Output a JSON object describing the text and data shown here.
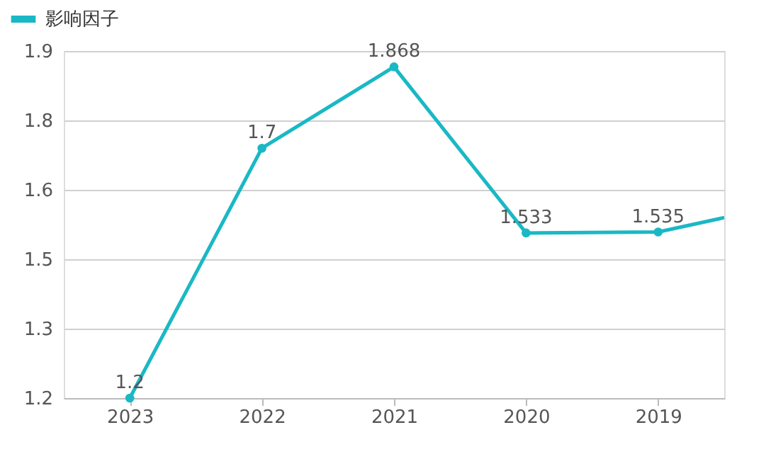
{
  "chart_data": {
    "type": "line",
    "x": [
      2023,
      2022,
      2021,
      2020,
      2019,
      2018.5
    ],
    "series": [
      {
        "name": "影响因子",
        "color": "#1ab8c4",
        "values": [
          1.2,
          1.704,
          1.868,
          1.533,
          1.535,
          1.564
        ],
        "value_labels": [
          "1.2",
          "1.7",
          "1.868",
          "1.533",
          "1.535",
          null
        ]
      }
    ],
    "xlim": [
      2023.5,
      2018.5
    ],
    "xticks": [
      2023,
      2022,
      2021,
      2020,
      2019
    ],
    "ylim": [
      1.2,
      1.9
    ],
    "yticks": [
      1.2,
      {
        "value": 1.34,
        "label": "1.3"
      },
      {
        "value": 1.48,
        "label": "1.5"
      },
      {
        "value": 1.62,
        "label": "1.6"
      },
      {
        "value": 1.76,
        "label": "1.8"
      },
      1.9
    ],
    "grid": "y",
    "legend": "top left",
    "marker": "circle",
    "line_style": "solid"
  }
}
